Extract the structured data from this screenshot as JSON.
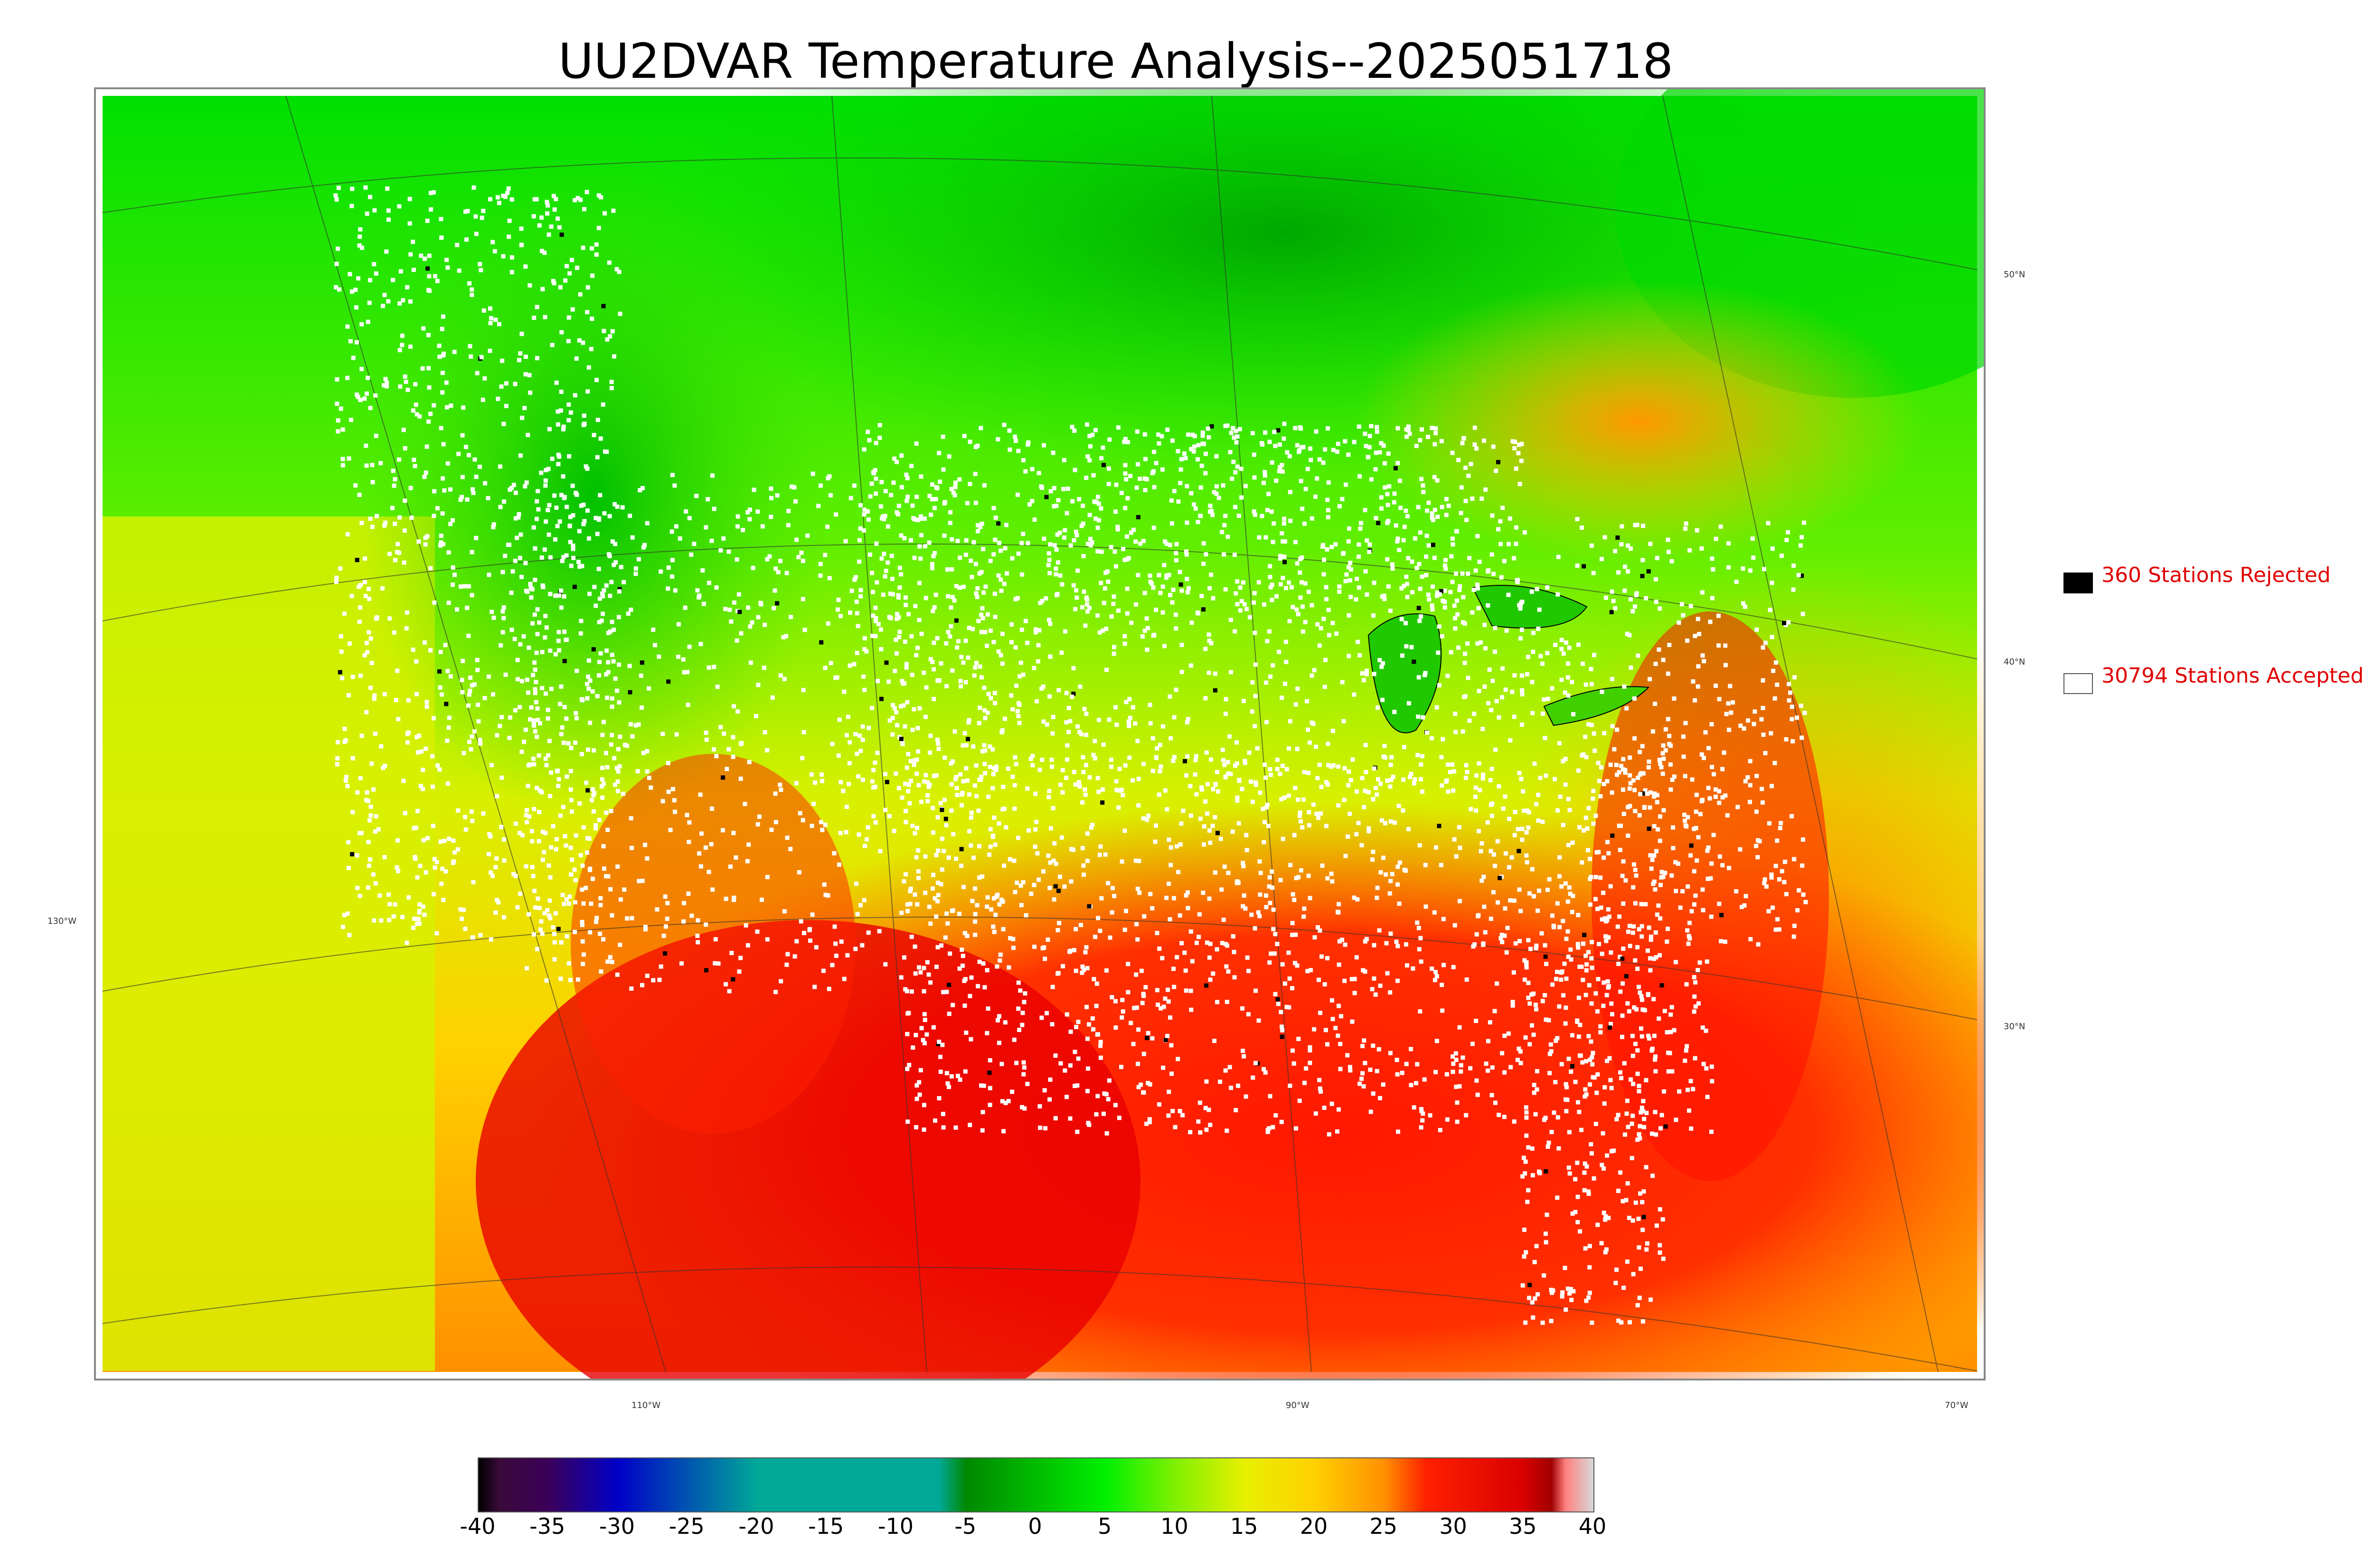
{
  "title": "UU2DVAR Temperature Analysis--2025051718",
  "legend": {
    "rejected": {
      "label": "360 Stations Rejected",
      "swatch_color": "#000000"
    },
    "accepted": {
      "label": "30794 Stations Accepted",
      "swatch_color": "#ffffff"
    }
  },
  "graticule": {
    "lat_labels": [
      "50°N",
      "40°N",
      "30°N"
    ],
    "lon_labels": [
      "130°W",
      "110°W",
      "90°W",
      "70°W"
    ]
  },
  "colorbar": {
    "ticks": [
      "-40",
      "-35",
      "-30",
      "-25",
      "-20",
      "-15",
      "-10",
      "-5",
      "0",
      "5",
      "10",
      "15",
      "20",
      "25",
      "30",
      "35",
      "40"
    ],
    "range": [
      -40,
      40
    ],
    "stops": [
      {
        "value": -40,
        "color": "#000000"
      },
      {
        "value": -38.5,
        "color": "#3a0a3a"
      },
      {
        "value": -35,
        "color": "#3b0058"
      },
      {
        "value": -30,
        "color": "#0000c8"
      },
      {
        "value": -20,
        "color": "#00a898"
      },
      {
        "value": -7,
        "color": "#00a898"
      },
      {
        "value": -5,
        "color": "#008800"
      },
      {
        "value": 5,
        "color": "#00f000"
      },
      {
        "value": 10,
        "color": "#80f000"
      },
      {
        "value": 15,
        "color": "#e8f000"
      },
      {
        "value": 20,
        "color": "#ffd000"
      },
      {
        "value": 25,
        "color": "#ff9000"
      },
      {
        "value": 28,
        "color": "#ff2000"
      },
      {
        "value": 35,
        "color": "#d80000"
      },
      {
        "value": 37,
        "color": "#a00000"
      },
      {
        "value": 38,
        "color": "#ff8080"
      },
      {
        "value": 40,
        "color": "#d8d8d8"
      }
    ]
  },
  "colors": {
    "cold": "#00d400",
    "mild": "#e8f000",
    "warm": "#ffb000",
    "hot": "#e80000",
    "accepted_station": "#ffffff",
    "rejected_station": "#000000"
  }
}
